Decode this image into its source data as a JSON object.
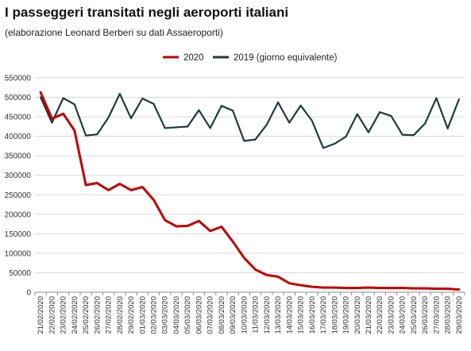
{
  "title": "I passeggeri transitati negli aeroporti italiani",
  "subtitle": "(elaborazione Leonard Berberi su dati Assaeroporti)",
  "colors": {
    "s2020": "#c00000",
    "s2019": "#1f3b3a",
    "grid": "#d9d9d9",
    "axis": "#8c8c8c"
  },
  "chart_data": {
    "type": "line",
    "title": "I passeggeri transitati negli aeroporti italiani",
    "subtitle": "(elaborazione Leonard Berberi su dati Assaeroporti)",
    "legend": "top",
    "grid": "horizontal",
    "xlabel": "",
    "ylabel": "",
    "ylim": [
      0,
      550000
    ],
    "yticks": [
      "0",
      "50000",
      "100000",
      "150000",
      "200000",
      "250000",
      "300000",
      "350000",
      "400000",
      "450000",
      "500000",
      "550000"
    ],
    "categories": [
      "21/02/2020",
      "22/02/2020",
      "23/02/2020",
      "24/02/2020",
      "25/02/2020",
      "26/02/2020",
      "27/02/2020",
      "28/02/2020",
      "29/02/2020",
      "01/03/2020",
      "02/03/2020",
      "03/03/2020",
      "04/03/2020",
      "05/03/2020",
      "06/03/2020",
      "07/03/2020",
      "08/03/2020",
      "09/03/2020",
      "10/03/2020",
      "11/03/2020",
      "12/03/2020",
      "13/03/2020",
      "14/03/2020",
      "15/03/2020",
      "16/03/2020",
      "17/03/2020",
      "18/03/2020",
      "19/03/2020",
      "20/03/2020",
      "21/03/2020",
      "22/03/2020",
      "23/03/2020",
      "24/03/2020",
      "25/03/2020",
      "26/03/2020",
      "27/03/2020",
      "28/03/2020",
      "29/03/2020"
    ],
    "series": [
      {
        "name": "2020",
        "color": "#c00000",
        "values": [
          513000,
          445000,
          458000,
          415000,
          275000,
          280000,
          262000,
          278000,
          262000,
          270000,
          237000,
          185000,
          169000,
          170000,
          183000,
          157000,
          168000,
          130000,
          88000,
          58000,
          44000,
          40000,
          23000,
          18000,
          14000,
          12000,
          12000,
          11000,
          11000,
          12000,
          11000,
          11000,
          11000,
          10000,
          10000,
          9000,
          9000,
          7000
        ]
      },
      {
        "name": "2019 (giorno equivalente)",
        "color": "#1f3b3a",
        "values": [
          500000,
          435000,
          498000,
          482000,
          402000,
          405000,
          448000,
          509000,
          446000,
          497000,
          483000,
          421000,
          423000,
          425000,
          467000,
          421000,
          478000,
          466000,
          388000,
          392000,
          430000,
          487000,
          435000,
          479000,
          440000,
          370000,
          381000,
          399000,
          457000,
          410000,
          462000,
          452000,
          404000,
          403000,
          433000,
          498000,
          420000,
          495000
        ]
      }
    ]
  }
}
